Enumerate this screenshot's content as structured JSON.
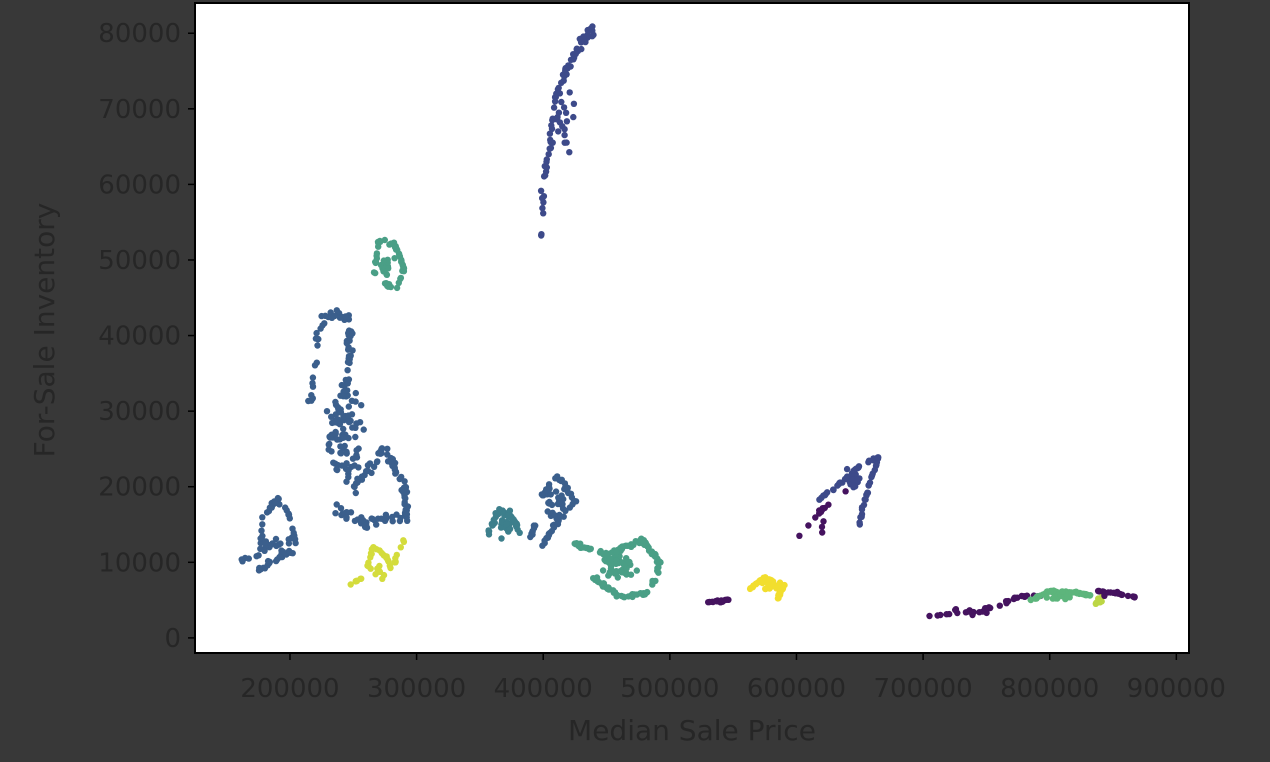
{
  "chart_data": {
    "type": "scatter",
    "title": "",
    "xlabel": "Median Sale Price",
    "ylabel": "For-Sale Inventory",
    "xlim": [
      125000,
      910000
    ],
    "ylim": [
      -2000,
      84000
    ],
    "xticks": [
      200000,
      300000,
      400000,
      500000,
      600000,
      700000,
      800000,
      900000
    ],
    "yticks": [
      0,
      10000,
      20000,
      30000,
      40000,
      50000,
      60000,
      70000,
      80000
    ],
    "grid": false,
    "legend": "none",
    "colors": {
      "dark_purple": "#45135f",
      "indigo": "#3d4a8a",
      "steel_blue": "#3b5f8c",
      "teal": "#3d7f8c",
      "sea_green": "#4a9f86",
      "jade": "#5db57c",
      "lime": "#bcd645",
      "chartreuse": "#d4dc3c",
      "yellow": "#f2de2e"
    },
    "clusters": [
      {
        "color_key": "indigo",
        "center": [
          415000,
          68000
        ],
        "spread": [
          14000,
          7500
        ],
        "count": 90,
        "path": [
          [
            398000,
            52500
          ],
          [
            400000,
            60000
          ],
          [
            405000,
            66000
          ],
          [
            410000,
            72000
          ],
          [
            418000,
            75000
          ],
          [
            428000,
            78500
          ],
          [
            440000,
            80500
          ]
        ]
      },
      {
        "color_key": "sea_green",
        "center": [
          277000,
          49000
        ],
        "spread": [
          7000,
          2500
        ],
        "count": 70,
        "path": [
          [
            266000,
            47500
          ],
          [
            270000,
            52500
          ],
          [
            283000,
            52000
          ],
          [
            290000,
            49000
          ],
          [
            285000,
            46000
          ],
          [
            275000,
            47000
          ]
        ]
      },
      {
        "color_key": "steel_blue",
        "center": [
          245000,
          27000
        ],
        "spread": [
          22000,
          8000
        ],
        "count": 260,
        "path": [
          [
            215000,
            30000
          ],
          [
            225000,
            42500
          ],
          [
            248000,
            42500
          ],
          [
            245000,
            33000
          ],
          [
            230000,
            25000
          ],
          [
            250000,
            20000
          ],
          [
            275000,
            25000
          ],
          [
            290000,
            20000
          ],
          [
            293000,
            16000
          ],
          [
            260000,
            15500
          ],
          [
            235000,
            17000
          ]
        ]
      },
      {
        "color_key": "steel_blue",
        "center": [
          190000,
          12000
        ],
        "spread": [
          15000,
          3000
        ],
        "count": 80,
        "path": [
          [
            160000,
            10200
          ],
          [
            175000,
            11000
          ],
          [
            180000,
            16000
          ],
          [
            190000,
            18500
          ],
          [
            200000,
            16000
          ],
          [
            205000,
            12000
          ],
          [
            185000,
            10000
          ],
          [
            175000,
            9000
          ]
        ]
      },
      {
        "color_key": "chartreuse",
        "center": [
          270000,
          9500
        ],
        "spread": [
          10000,
          2000
        ],
        "count": 45,
        "path": [
          [
            245000,
            7000
          ],
          [
            260000,
            8000
          ],
          [
            265000,
            12000
          ],
          [
            275000,
            11000
          ],
          [
            280000,
            9000
          ],
          [
            290000,
            13000
          ]
        ]
      },
      {
        "color_key": "teal",
        "center": [
          372000,
          15000
        ],
        "spread": [
          10000,
          2200
        ],
        "count": 60,
        "path": [
          [
            355000,
            13000
          ],
          [
            365000,
            17000
          ],
          [
            375000,
            16000
          ],
          [
            382000,
            14000
          ]
        ]
      },
      {
        "color_key": "steel_blue",
        "center": [
          410000,
          17500
        ],
        "spread": [
          13000,
          3000
        ],
        "count": 80,
        "path": [
          [
            390000,
            13000
          ],
          [
            398000,
            18500
          ],
          [
            412000,
            21500
          ],
          [
            425000,
            18000
          ],
          [
            410000,
            15000
          ],
          [
            400000,
            12500
          ]
        ]
      },
      {
        "color_key": "sea_green",
        "center": [
          460000,
          9500
        ],
        "spread": [
          18000,
          2500
        ],
        "count": 170,
        "path": [
          [
            425000,
            12500
          ],
          [
            450000,
            11000
          ],
          [
            478000,
            13000
          ],
          [
            492000,
            10000
          ],
          [
            485000,
            6000
          ],
          [
            460000,
            5500
          ],
          [
            440000,
            8000
          ]
        ]
      },
      {
        "color_key": "dark_purple",
        "center": [
          540000,
          4800
        ],
        "spread": [
          5000,
          400
        ],
        "count": 18,
        "path": [
          [
            530000,
            4700
          ],
          [
            548000,
            5100
          ]
        ]
      },
      {
        "color_key": "yellow",
        "center": [
          578000,
          6800
        ],
        "spread": [
          9000,
          1200
        ],
        "count": 60,
        "path": [
          [
            562000,
            6300
          ],
          [
            575000,
            8000
          ],
          [
            590000,
            7000
          ],
          [
            585000,
            5200
          ]
        ]
      },
      {
        "color_key": "indigo",
        "center": [
          645000,
          21000
        ],
        "spread": [
          9000,
          2000
        ],
        "count": 70,
        "path": [
          [
            615000,
            18000
          ],
          [
            632000,
            20000
          ],
          [
            648000,
            22500
          ],
          [
            665000,
            24000
          ],
          [
            655000,
            19000
          ],
          [
            650000,
            15000
          ]
        ]
      },
      {
        "color_key": "dark_purple",
        "center": [
          620000,
          15000
        ],
        "spread": [
          10000,
          1500
        ],
        "count": 14,
        "path": [
          [
            600000,
            13000
          ],
          [
            620000,
            17000
          ],
          [
            640000,
            19500
          ]
        ]
      },
      {
        "color_key": "dark_purple",
        "center": [
          740000,
          3500
        ],
        "spread": [
          20000,
          700
        ],
        "count": 40,
        "path": [
          [
            700000,
            2800
          ],
          [
            730000,
            3300
          ],
          [
            760000,
            4200
          ],
          [
            775000,
            5500
          ],
          [
            800000,
            5600
          ]
        ]
      },
      {
        "color_key": "jade",
        "center": [
          810000,
          5600
        ],
        "spread": [
          15000,
          900
        ],
        "count": 70,
        "path": [
          [
            785000,
            5000
          ],
          [
            800000,
            6200
          ],
          [
            820000,
            6000
          ],
          [
            835000,
            5500
          ]
        ]
      },
      {
        "color_key": "lime",
        "center": [
          840000,
          5100
        ],
        "spread": [
          3000,
          700
        ],
        "count": 18,
        "path": [
          [
            836000,
            4500
          ],
          [
            843000,
            5800
          ]
        ]
      },
      {
        "color_key": "dark_purple",
        "center": [
          850000,
          5900
        ],
        "spread": [
          12000,
          500
        ],
        "count": 22,
        "path": [
          [
            838000,
            6200
          ],
          [
            855000,
            5800
          ],
          [
            870000,
            5300
          ]
        ]
      }
    ]
  }
}
